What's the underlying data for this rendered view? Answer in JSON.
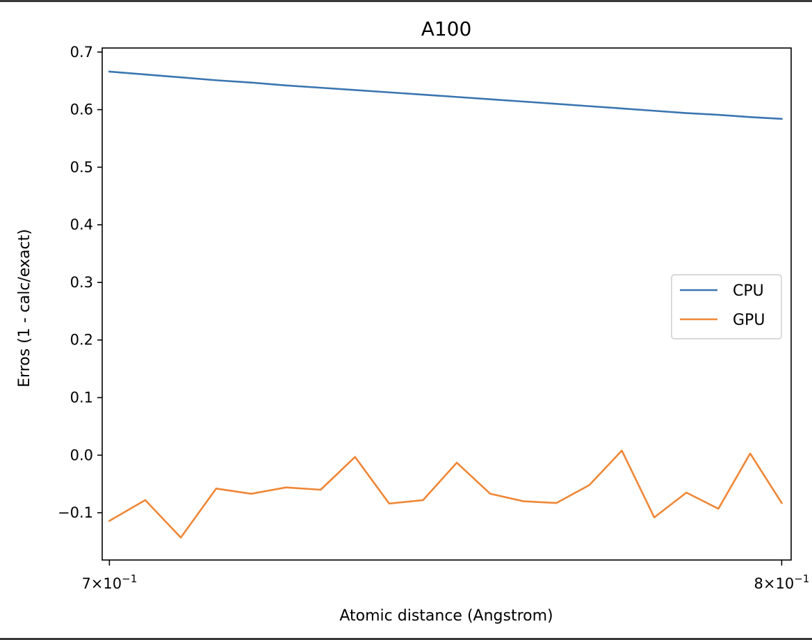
{
  "chart_data": {
    "type": "line",
    "title": "A100",
    "xlabel": "Atomic distance (Angstrom)",
    "ylabel": "Erros (1 - calc/exact)",
    "xscale": "log",
    "xlim": [
      0.699,
      0.8015
    ],
    "ylim": [
      -0.182,
      0.707
    ],
    "yticks": [
      -0.1,
      0.0,
      0.1,
      0.2,
      0.3,
      0.4,
      0.5,
      0.6,
      0.7
    ],
    "ytick_labels": [
      "−0.1",
      "0.0",
      "0.1",
      "0.2",
      "0.3",
      "0.4",
      "0.5",
      "0.6",
      "0.7"
    ],
    "xticks": [
      0.7,
      0.8
    ],
    "xtick_labels": [
      {
        "base": "7×10",
        "exp": "−1"
      },
      {
        "base": "8×10",
        "exp": "−1"
      }
    ],
    "grid": false,
    "legend_position": "center-right",
    "x": [
      0.7,
      0.705,
      0.71,
      0.715,
      0.72,
      0.725,
      0.73,
      0.735,
      0.74,
      0.745,
      0.75,
      0.755,
      0.76,
      0.765,
      0.77,
      0.775,
      0.78,
      0.785,
      0.79,
      0.795,
      0.8
    ],
    "series": [
      {
        "name": "CPU",
        "color": "#3a75b0",
        "values": [
          0.666,
          0.661,
          0.656,
          0.651,
          0.647,
          0.642,
          0.638,
          0.634,
          0.63,
          0.626,
          0.622,
          0.618,
          0.614,
          0.61,
          0.606,
          0.602,
          0.598,
          0.594,
          0.591,
          0.587,
          0.584
        ]
      },
      {
        "name": "GPU",
        "color": "#ef8636",
        "values": [
          -0.114,
          -0.078,
          -0.143,
          -0.058,
          -0.067,
          -0.056,
          -0.06,
          -0.003,
          -0.084,
          -0.078,
          -0.013,
          -0.067,
          -0.08,
          -0.083,
          -0.052,
          0.008,
          -0.108,
          -0.065,
          -0.093,
          0.003,
          -0.083
        ]
      }
    ]
  }
}
